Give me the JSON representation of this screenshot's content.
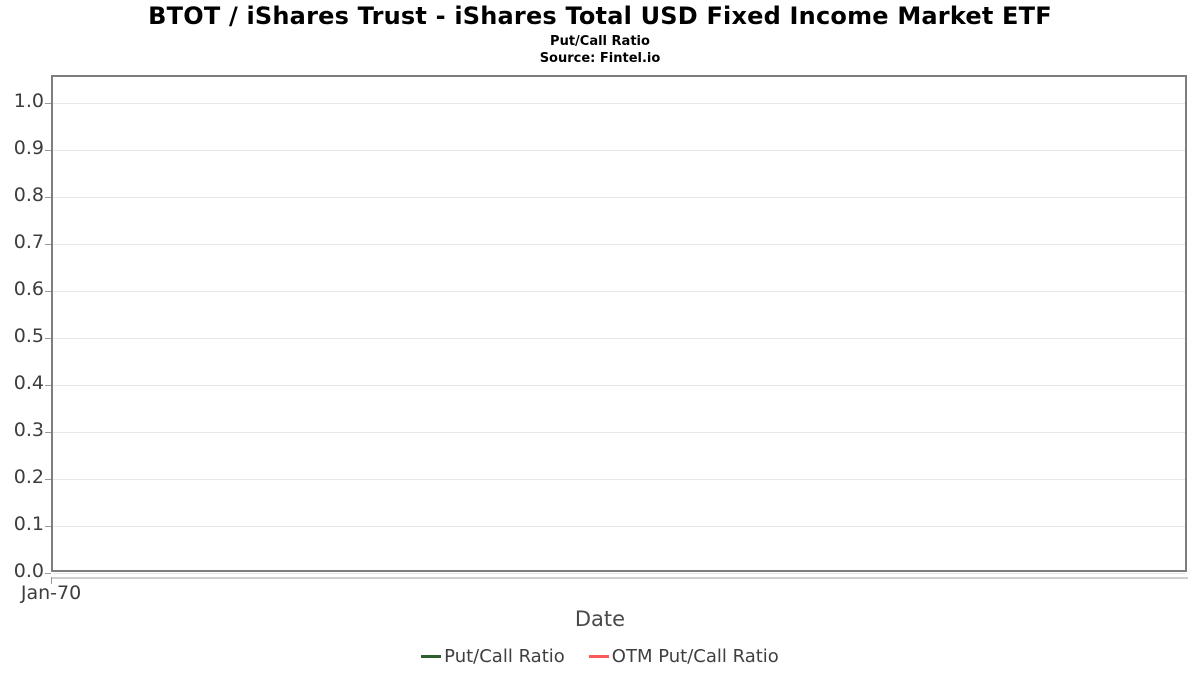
{
  "header": {
    "title": "BTOT / iShares Trust - iShares Total USD Fixed Income Market ETF",
    "subtitle": "Put/Call Ratio",
    "source": "Source: Fintel.io"
  },
  "axes": {
    "x_label": "Date",
    "x_ticks": [
      "Jan-70"
    ],
    "y_ticks": [
      "1.0",
      "0.9",
      "0.8",
      "0.7",
      "0.6",
      "0.5",
      "0.4",
      "0.3",
      "0.2",
      "0.1",
      "0.0"
    ]
  },
  "legend": [
    {
      "label": "Put/Call Ratio",
      "color": "#2d5f2f"
    },
    {
      "label": "OTM Put/Call Ratio",
      "color": "#fa5a5a"
    }
  ],
  "colors": {
    "grid": "#e8e8e8",
    "plot_border": "#7d7d7d",
    "tick_text": "#3d3d3d",
    "axis_title_text": "#4a4a4a",
    "legend_text": "#3f3f3f",
    "series_put_call": "#2d5f2f",
    "series_otm_put_call": "#fa5a5a"
  },
  "chart_data": {
    "type": "line",
    "title": "BTOT / iShares Trust - iShares Total USD Fixed Income Market ETF",
    "subtitle": "Put/Call Ratio",
    "source": "Source: Fintel.io",
    "xlabel": "Date",
    "ylabel": "",
    "ylim": [
      0.0,
      1.05
    ],
    "y_ticks": [
      0.0,
      0.1,
      0.2,
      0.3,
      0.4,
      0.5,
      0.6,
      0.7,
      0.8,
      0.9,
      1.0
    ],
    "x_tick_labels": [
      "Jan-70"
    ],
    "grid": true,
    "legend_position": "bottom",
    "series": [
      {
        "name": "Put/Call Ratio",
        "color": "#2d5f2f",
        "x": [],
        "values": []
      },
      {
        "name": "OTM Put/Call Ratio",
        "color": "#fa5a5a",
        "x": [],
        "values": []
      }
    ]
  }
}
